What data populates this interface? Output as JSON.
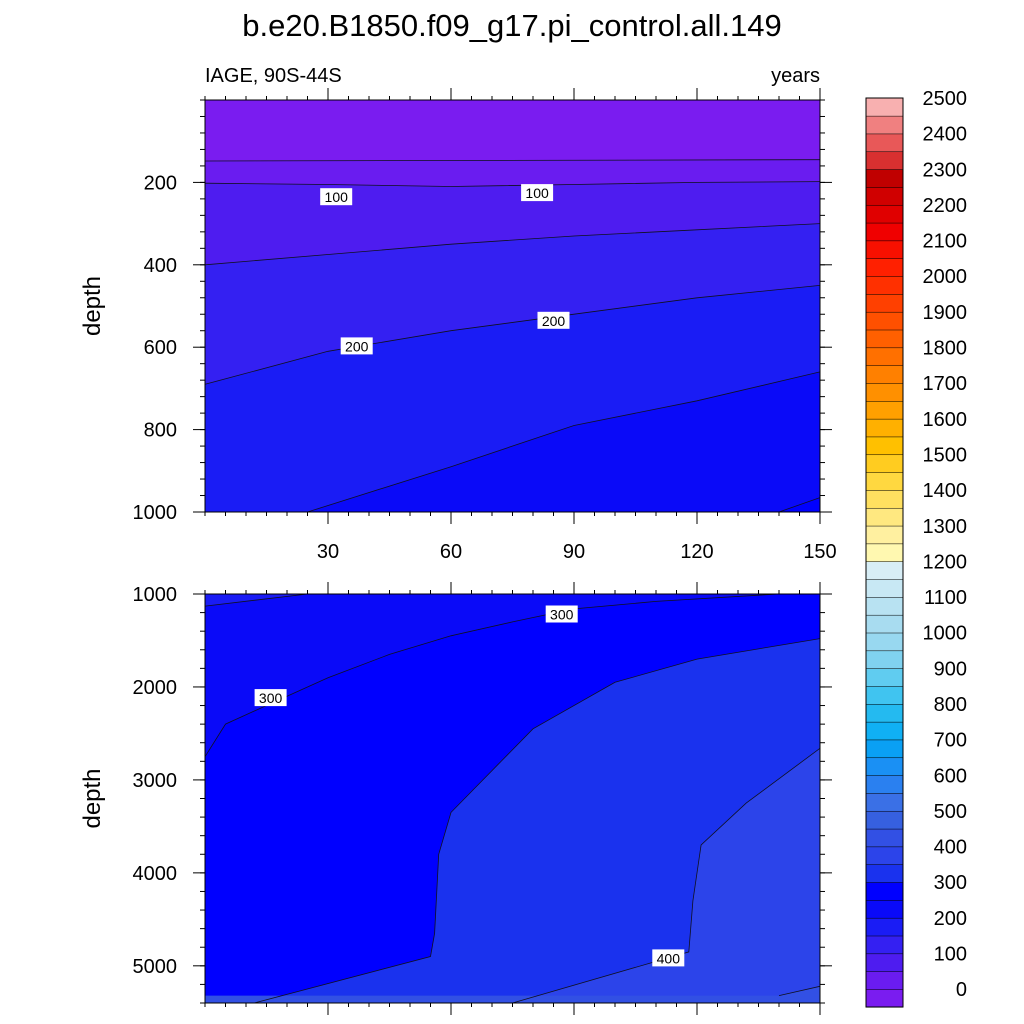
{
  "chart_data": {
    "type": "contour",
    "title": "b.e20.B1850.f09_g17.pi_control.all.149",
    "left_string": "IAGE, 90S-44S",
    "right_string": "years",
    "variable": "IAGE",
    "region": "90S-44S",
    "units": "years",
    "colorbar": {
      "levels": [
        0,
        50,
        100,
        150,
        200,
        250,
        300,
        350,
        400,
        450,
        500,
        550,
        600,
        650,
        700,
        750,
        800,
        850,
        900,
        950,
        1000,
        1050,
        1100,
        1150,
        1200,
        1250,
        1300,
        1350,
        1400,
        1450,
        1500,
        1550,
        1600,
        1650,
        1700,
        1750,
        1800,
        1850,
        1900,
        1950,
        2000,
        2050,
        2100,
        2150,
        2200,
        2250,
        2300,
        2350,
        2400,
        2450,
        2500,
        2550
      ],
      "labels": [
        "0",
        "100",
        "200",
        "300",
        "400",
        "500",
        "600",
        "700",
        "800",
        "900",
        "1000",
        "1100",
        "1200",
        "1300",
        "1400",
        "1500",
        "1600",
        "1700",
        "1800",
        "1900",
        "2000",
        "2100",
        "2200",
        "2300",
        "2400",
        "2500"
      ],
      "colors": [
        "#7a1cf0",
        "#6a1cf0",
        "#4e1cf0",
        "#3420f2",
        "#1a1cf5",
        "#0a0af8",
        "#0000ff",
        "#1a32ee",
        "#2c44ea",
        "#3250e4",
        "#3660e0",
        "#3a70e6",
        "#2a80f0",
        "#1a90f4",
        "#0aa0f4",
        "#10b0f4",
        "#24baf0",
        "#40c4f0",
        "#60ccf0",
        "#80d2f0",
        "#98d8f0",
        "#a8dcf0",
        "#b8e2f2",
        "#c8e8f4",
        "#d8eef6",
        "#fff8b0",
        "#fff0a0",
        "#ffe880",
        "#ffe060",
        "#ffd840",
        "#ffcc20",
        "#ffc000",
        "#ffb000",
        "#ffa000",
        "#ff9000",
        "#ff8000",
        "#ff7000",
        "#ff6000",
        "#ff5000",
        "#ff4000",
        "#ff3000",
        "#ff2000",
        "#f81000",
        "#f00000",
        "#e00000",
        "#d00000",
        "#c00000",
        "#d83030",
        "#e85858",
        "#f08080",
        "#f8b0b0"
      ]
    },
    "panels": [
      {
        "name": "upper",
        "xlabel": "",
        "ylabel": "depth",
        "xlim": [
          0,
          150
        ],
        "ylim": [
          1000,
          0
        ],
        "xticks": [
          30,
          60,
          90,
          120,
          150
        ],
        "yticks": [
          200,
          400,
          600,
          800,
          1000
        ],
        "contours": [
          {
            "level": 50,
            "x": [
              0,
              150
            ],
            "depth": [
              148,
              145
            ]
          },
          {
            "level": 100,
            "x": [
              0,
              30,
              60,
              90,
              120,
              150
            ],
            "depth": [
              202,
              205,
              210,
              205,
              200,
              198
            ]
          },
          {
            "level": 150,
            "x": [
              0,
              30,
              60,
              90,
              120,
              150
            ],
            "depth": [
              400,
              375,
              350,
              330,
              315,
              300
            ]
          },
          {
            "level": 200,
            "x": [
              0,
              30,
              60,
              90,
              120,
              150
            ],
            "depth": [
              690,
              610,
              560,
              520,
              480,
              450
            ]
          },
          {
            "level": 250,
            "x": [
              25,
              60,
              90,
              120,
              150
            ],
            "depth": [
              1000,
              890,
              790,
              730,
              660
            ]
          },
          {
            "level": 300,
            "x": [
              140,
              150
            ],
            "depth": [
              1000,
              965
            ]
          }
        ],
        "contour_labels": [
          {
            "text": "100",
            "x": 32,
            "depth": 236
          },
          {
            "text": "100",
            "x": 81,
            "depth": 226
          },
          {
            "text": "200",
            "x": 37,
            "depth": 598
          },
          {
            "text": "200",
            "x": 85,
            "depth": 536
          }
        ]
      },
      {
        "name": "lower",
        "xlabel": "",
        "ylabel": "depth",
        "xlim": [
          0,
          150
        ],
        "ylim": [
          5400,
          1000
        ],
        "xticks": [
          30,
          60,
          90,
          120,
          150
        ],
        "yticks": [
          1000,
          2000,
          3000,
          4000,
          5000
        ],
        "contours": [
          {
            "level": 250,
            "x": [
              0,
              25
            ],
            "depth": [
              1130,
              1000
            ]
          },
          {
            "level": 300,
            "x": [
              0,
              5,
              15,
              30,
              45,
              60,
              75,
              90,
              110,
              140
            ],
            "depth": [
              2750,
              2400,
              2200,
              1900,
              1650,
              1450,
              1300,
              1160,
              1080,
              1000
            ]
          },
          {
            "level": 350,
            "x": [
              12,
              55,
              56,
              57,
              60,
              80,
              100,
              120,
              150
            ],
            "depth": [
              5400,
              4900,
              4650,
              3800,
              3350,
              2450,
              1950,
              1700,
              1480
            ]
          },
          {
            "level": 400,
            "x": [
              75,
              118,
              119,
              121,
              132,
              150
            ],
            "depth": [
              5400,
              4850,
              4300,
              3700,
              3250,
              2660
            ]
          },
          {
            "level": 450,
            "x": [
              140,
              150
            ],
            "depth": [
              5320,
              5220
            ]
          }
        ],
        "contour_labels": [
          {
            "text": "300",
            "x": 87,
            "depth": 1220
          },
          {
            "text": "300",
            "x": 16,
            "depth": 2120
          },
          {
            "text": "400",
            "x": 113,
            "depth": 4920
          }
        ]
      }
    ]
  }
}
